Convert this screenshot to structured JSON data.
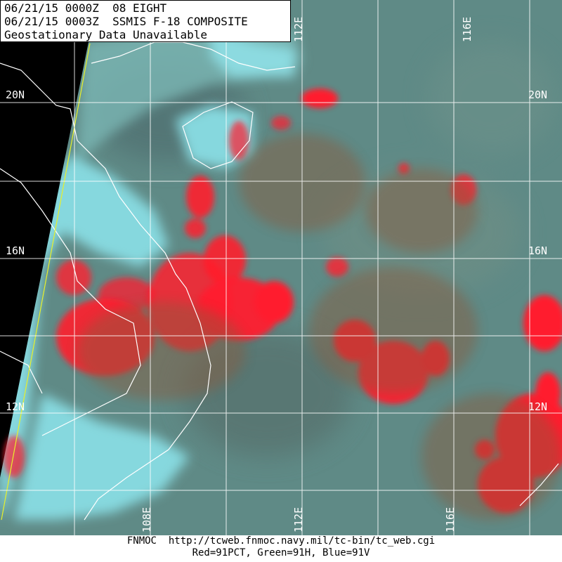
{
  "header": {
    "line1": "06/21/15 0000Z  08 EIGHT",
    "line2": "06/21/15 0003Z  SSMIS F-18 COMPOSITE",
    "line3": "Geostationary Data Unavailable"
  },
  "latitude_labels": [
    "20N",
    "16N",
    "12N"
  ],
  "longitude_labels": [
    "108E",
    "112E",
    "116E"
  ],
  "footer": {
    "line1": "FNMOC  http://tcweb.fnmoc.navy.mil/tc-bin/tc_web.cgi",
    "line2": "Red=91PCT, Green=91H, Blue=91V"
  },
  "colors": {
    "ocean": "#5f8a86",
    "land_cyan": "#7fd0d6",
    "convection_red": "#ff1e2e",
    "outside_swath": "#000000",
    "swath_edge": "#e8f02a",
    "gridlines": "#ffffff"
  }
}
